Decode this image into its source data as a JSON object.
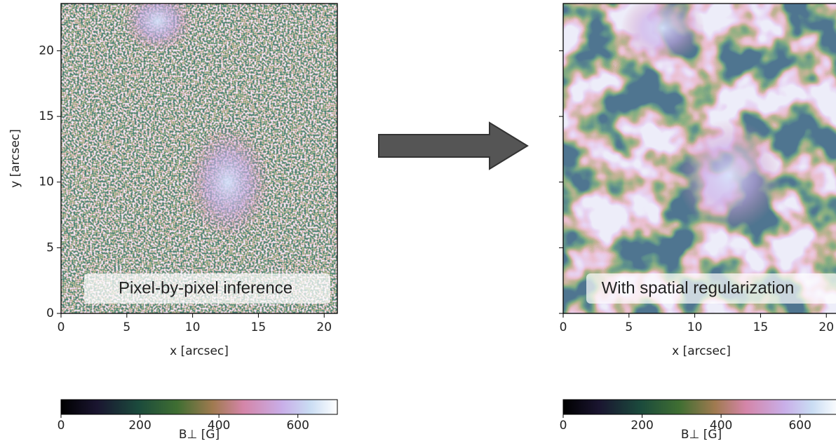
{
  "chart_data": [
    {
      "type": "image",
      "xlabel": "x [arcsec]",
      "ylabel": "y [arcsec]",
      "xlim": [
        0,
        21
      ],
      "ylim": [
        0,
        23.6
      ],
      "xticks": [
        0,
        5,
        10,
        15,
        20
      ],
      "yticks": [
        0,
        5,
        10,
        15,
        20
      ],
      "annotation": "Pixel-by-pixel inference",
      "colorbar": {
        "label": "B⊥ [G]",
        "lim": [
          0,
          700
        ],
        "ticks": [
          0,
          200,
          400,
          600
        ]
      }
    },
    {
      "type": "image",
      "xlabel": "x [arcsec]",
      "xlim": [
        0,
        21
      ],
      "ylim": [
        0,
        23.6
      ],
      "xticks": [
        0,
        5,
        10,
        15,
        20
      ],
      "yticks": [
        0,
        5,
        10,
        15,
        20
      ],
      "annotation": "With spatial regularization",
      "colorbar": {
        "label": "B⊥ [G]",
        "lim": [
          0,
          700
        ],
        "ticks": [
          0,
          200,
          400,
          600
        ]
      }
    }
  ]
}
